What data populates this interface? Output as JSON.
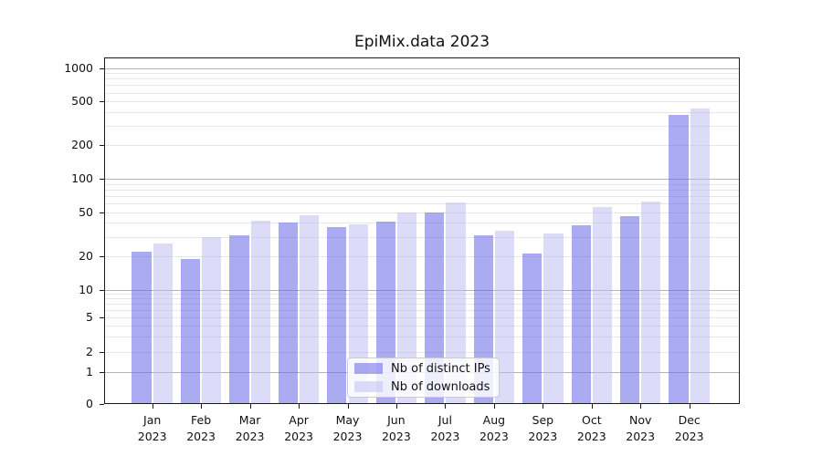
{
  "title": "EpiMix.data 2023",
  "chart_data": {
    "type": "bar",
    "title": "EpiMix.data 2023",
    "categories": [
      "Jan 2023",
      "Feb 2023",
      "Mar 2023",
      "Apr 2023",
      "May 2023",
      "Jun 2023",
      "Jul 2023",
      "Aug 2023",
      "Sep 2023",
      "Oct 2023",
      "Nov 2023",
      "Dec 2023"
    ],
    "series": [
      {
        "name": "Nb of distinct IPs",
        "values": [
          22,
          19,
          31,
          40,
          37,
          41,
          50,
          31,
          21,
          38,
          46,
          380
        ],
        "color": "#a9a9f4",
        "fill": "rgba(102,102,232,0.55)"
      },
      {
        "name": "Nb of downloads",
        "values": [
          26,
          30,
          42,
          47,
          39,
          50,
          61,
          34,
          32,
          56,
          62,
          430
        ],
        "color": "#dcdcf8",
        "fill": "rgba(185,185,242,0.5)"
      }
    ],
    "xlabel": "",
    "ylabel": "",
    "yscale": "symlog",
    "yticks": [
      0,
      1,
      2,
      5,
      10,
      20,
      50,
      100,
      200,
      500,
      1000
    ],
    "ylim": [
      0,
      1243
    ],
    "grid": "horizontal major and minor",
    "legend_position": "lower center inside"
  },
  "legend": {
    "items": [
      "Nb of distinct IPs",
      "Nb of downloads"
    ]
  },
  "colors": {
    "grid_major": "#b4b4b4",
    "grid_minor": "#e7e7e7",
    "spine": "#1a1a1a",
    "text": "#111111",
    "legend_border": "#cccccc",
    "legend_bg": "rgba(255,255,255,0.8)"
  }
}
